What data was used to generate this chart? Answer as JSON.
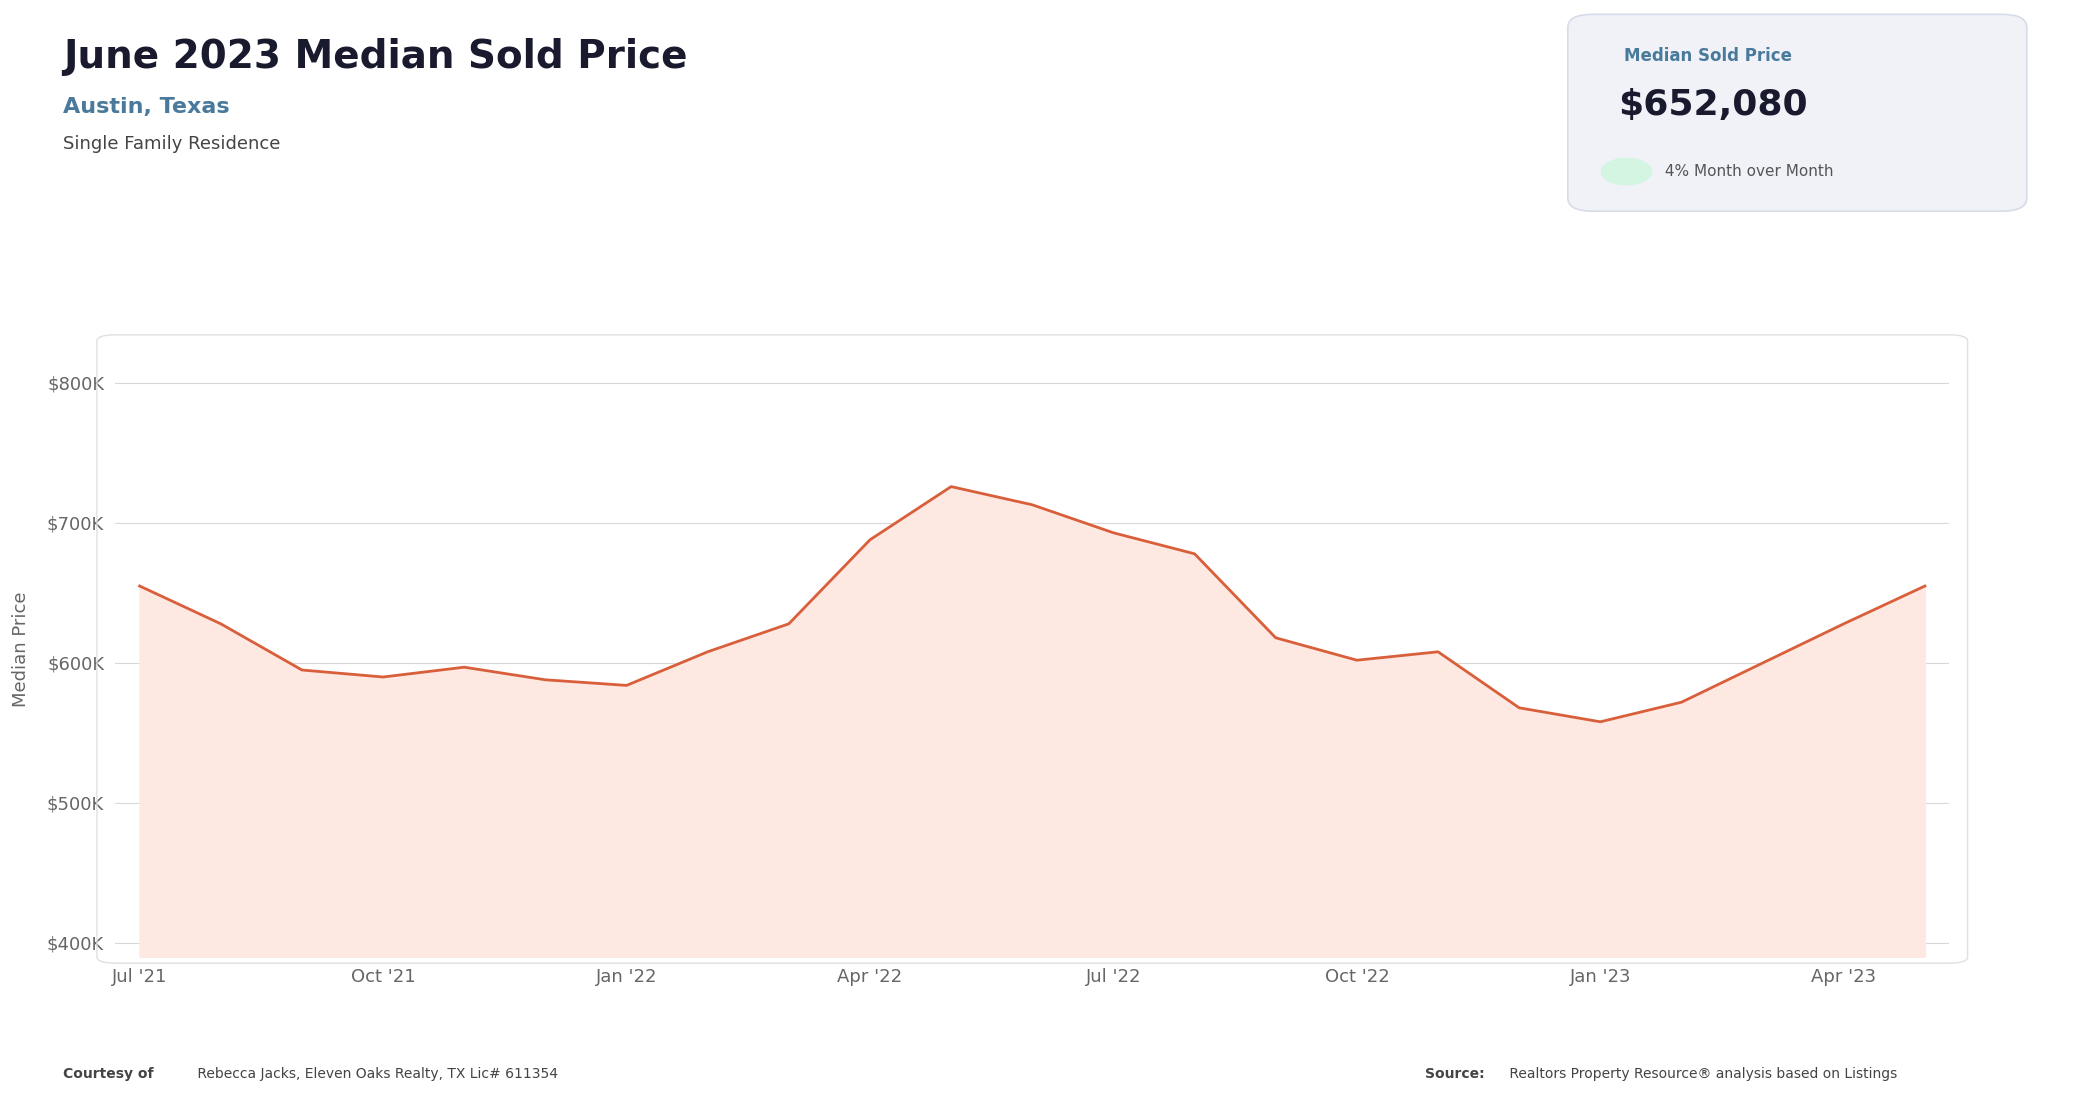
{
  "title": "June 2023 Median Sold Price",
  "subtitle": "Austin, Texas",
  "subtitle2": "Single Family Residence",
  "box_label": "Median Sold Price",
  "box_value": "$652,080",
  "box_change_arrow": "↑",
  "box_change_text": " 4% Month over Month",
  "ylabel": "Median Price",
  "courtesy_bold": "Courtesy of",
  "courtesy_rest": " Rebecca Jacks, Eleven Oaks Realty, TX Lic# 611354",
  "source_bold": "Source:",
  "source_rest": " Realtors Property Resource® analysis based on Listings",
  "x_labels": [
    "Jul '21",
    "Oct '21",
    "Jan '22",
    "Apr '22",
    "Jul '22",
    "Oct '22",
    "Jan '23",
    "Apr '23"
  ],
  "x_tick_positions": [
    0,
    3,
    6,
    9,
    12,
    15,
    18,
    21
  ],
  "data_x": [
    0,
    1,
    2,
    3,
    4,
    5,
    6,
    7,
    8,
    9,
    10,
    11,
    12,
    13,
    14,
    15,
    16,
    17,
    18,
    19,
    20,
    21,
    22
  ],
  "data_y": [
    655000,
    628000,
    595000,
    590000,
    597000,
    588000,
    584000,
    608000,
    628000,
    688000,
    726000,
    713000,
    693000,
    678000,
    618000,
    602000,
    608000,
    568000,
    558000,
    572000,
    600000,
    628000,
    655000
  ],
  "line_color": "#d95f3b",
  "fill_color": "#fde8e2",
  "background_color": "#ffffff",
  "chart_bg": "#ffffff",
  "chart_border_color": "#e0e0e0",
  "box_bg": "#f0f2f8",
  "title_color": "#1a1a2e",
  "subtitle_color": "#4a7a9b",
  "grid_color": "#d8d8d8",
  "tick_color": "#666666",
  "arrow_bg": "#d4f5e2",
  "arrow_color": "#27ae60",
  "change_text_color": "#555555",
  "ylim_min": 390000,
  "ylim_max": 830000,
  "yticks": [
    400000,
    500000,
    600000,
    700000,
    800000
  ],
  "ytick_labels": [
    "$400K",
    "$500K",
    "$600K",
    "$700K",
    "$800K"
  ]
}
